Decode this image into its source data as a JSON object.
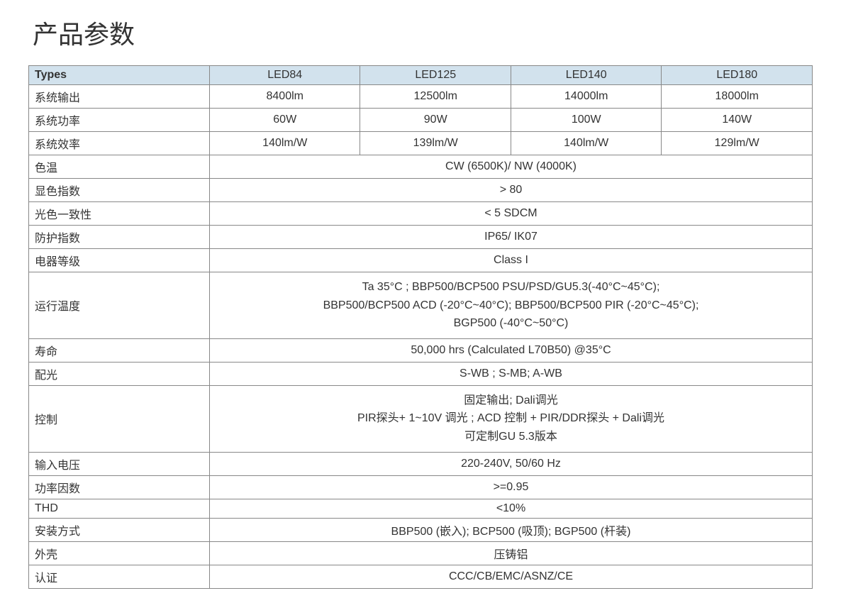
{
  "title": "产品参数",
  "table": {
    "header_background": "#d2e2ed",
    "border_color": "#888888",
    "text_color": "#333333",
    "font_size": 16,
    "label_col_width": 255,
    "types_label": "Types",
    "columns": [
      "LED84",
      "LED125",
      "LED140",
      "LED180"
    ],
    "rows": [
      {
        "label": "系统输出",
        "values": [
          "8400lm",
          "12500lm",
          "14000lm",
          "18000lm"
        ]
      },
      {
        "label": "系统功率",
        "values": [
          "60W",
          "90W",
          "100W",
          "140W"
        ]
      },
      {
        "label": "系统效率",
        "values": [
          "140lm/W",
          "139lm/W",
          "140lm/W",
          "129lm/W"
        ]
      },
      {
        "label": "色温",
        "span": "CW (6500K)/ NW (4000K)"
      },
      {
        "label": "显色指数",
        "span": "> 80"
      },
      {
        "label": "光色一致性",
        "span": "< 5 SDCM"
      },
      {
        "label": "防护指数",
        "span": "IP65/ IK07"
      },
      {
        "label": "电器等级",
        "span": "Class I"
      },
      {
        "label": "运行温度",
        "span_lines": [
          "Ta 35°C ; BBP500/BCP500 PSU/PSD/GU5.3(-40°C~45°C);",
          "BBP500/BCP500 ACD (-20°C~40°C); BBP500/BCP500 PIR (-20°C~45°C);",
          "BGP500 (-40°C~50°C)"
        ]
      },
      {
        "label": "寿命",
        "span": "50,000 hrs (Calculated L70B50) @35°C"
      },
      {
        "label": "配光",
        "span": "S-WB ; S-MB; A-WB"
      },
      {
        "label": "控制",
        "span_lines": [
          "固定输出; Dali调光",
          "PIR探头+ 1~10V 调光 ; ACD 控制 + PIR/DDR探头 + Dali调光",
          "可定制GU 5.3版本"
        ]
      },
      {
        "label": "输入电压",
        "span": "220-240V, 50/60 Hz"
      },
      {
        "label": "功率因数",
        "span": ">=0.95"
      },
      {
        "label": "THD",
        "span": "<10%"
      },
      {
        "label": "安装方式",
        "span": "BBP500 (嵌入); BCP500 (吸顶); BGP500 (杆装)"
      },
      {
        "label": "外壳",
        "span": "压铸铝"
      },
      {
        "label": "认证",
        "span": "CCC/CB/EMC/ASNZ/CE"
      }
    ]
  }
}
